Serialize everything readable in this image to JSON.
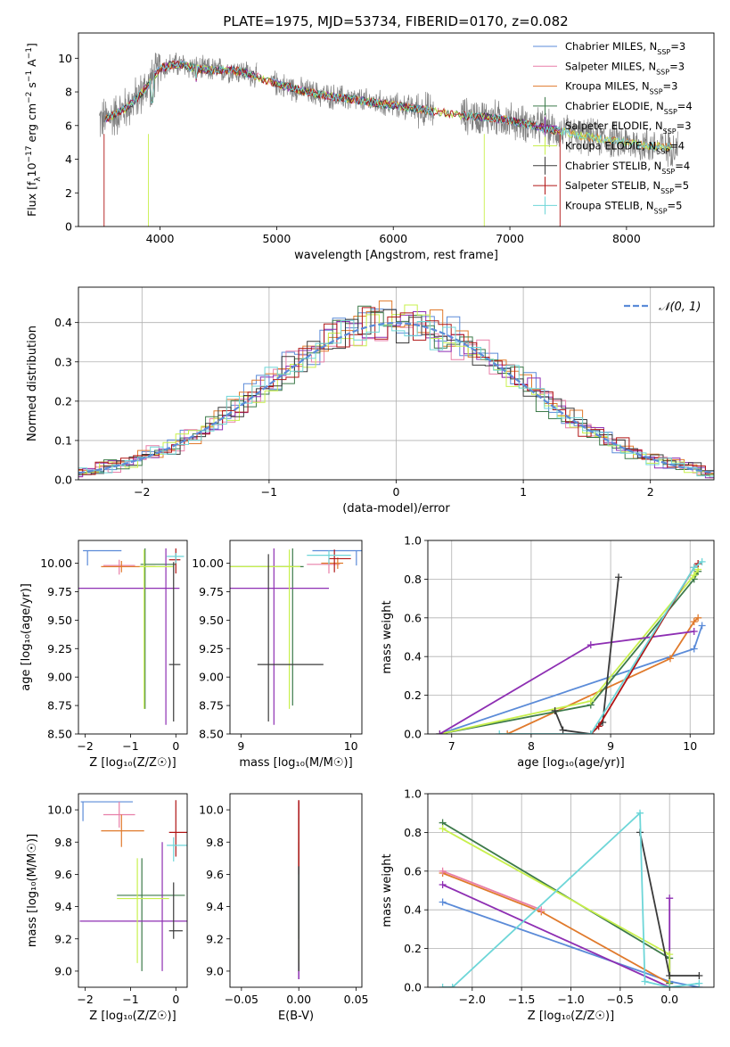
{
  "colors": {
    "Chabrier MILES": "#5b8bd8",
    "Salpeter MILES": "#e87fa8",
    "Kroupa MILES": "#e07a2c",
    "Chabrier ELODIE": "#3d7a4a",
    "Salpeter ELODIE": "#8e2fb3",
    "Kroupa ELODIE": "#c8f04d",
    "Chabrier STELIB": "#3a3a3a",
    "Salpeter STELIB": "#b01515",
    "Kroupa STELIB": "#6ed6d8"
  },
  "chart_data": [
    {
      "id": "spectrum",
      "type": "line",
      "title": "PLATE=1975, MJD=53734, FIBERID=0170, z=0.082",
      "xlabel": "wavelength [Angstrom, rest frame]",
      "ylabel_parts": [
        "Flux [f",
        "λ",
        "10",
        "−17",
        " erg cm",
        "−2",
        " s",
        "−1",
        " A",
        "−1",
        "]"
      ],
      "xlim": [
        3300,
        8750
      ],
      "ylim": [
        0,
        11.5
      ],
      "xticks": [
        "4000",
        "5000",
        "6000",
        "7000",
        "8000"
      ],
      "xtick_values": [
        4000,
        5000,
        6000,
        7000,
        8000
      ],
      "yticks": [
        "0",
        "2",
        "4",
        "6",
        "8",
        "10"
      ],
      "ytick_values": [
        0,
        2,
        4,
        6,
        8,
        10
      ],
      "data_color": "#808080",
      "legend": [
        {
          "name": "Chabrier MILES",
          "suffix": "=3"
        },
        {
          "name": "Salpeter MILES",
          "suffix": "=3"
        },
        {
          "name": "Kroupa MILES",
          "suffix": "=3"
        },
        {
          "name": "Chabrier ELODIE",
          "suffix": "=4"
        },
        {
          "name": "Salpeter ELODIE",
          "suffix": "=3"
        },
        {
          "name": "Kroupa ELODIE",
          "suffix": "=4"
        },
        {
          "name": "Chabrier STELIB",
          "suffix": "=4"
        },
        {
          "name": "Salpeter STELIB",
          "suffix": "=5"
        },
        {
          "name": "Kroupa STELIB",
          "suffix": "=5"
        }
      ],
      "legend_label_n": "N",
      "legend_label_sub": "SSP",
      "continuum": {
        "x": [
          3500,
          3600,
          3700,
          3800,
          3900,
          4000,
          4100,
          4200,
          4300,
          4400,
          4500,
          4600,
          4700,
          4800,
          4900,
          5000,
          5200,
          5400,
          5600,
          5800,
          6000,
          6200,
          6400,
          6600,
          6800,
          7000,
          7200,
          7400,
          7600,
          7800,
          8000,
          8200,
          8400
        ],
        "y": [
          6.3,
          6.6,
          7.0,
          7.6,
          8.4,
          9.4,
          9.6,
          9.6,
          9.4,
          9.3,
          9.3,
          9.3,
          9.2,
          9.0,
          8.7,
          8.5,
          8.1,
          7.8,
          7.6,
          7.4,
          7.2,
          7.0,
          6.8,
          6.6,
          6.5,
          6.3,
          6.0,
          5.7,
          5.4,
          5.2,
          5.0,
          4.8,
          4.7
        ]
      }
    },
    {
      "id": "residuals",
      "type": "histogram",
      "xlabel": "(data-model)/error",
      "ylabel": "Normed distribution",
      "xlim": [
        -2.5,
        2.5
      ],
      "ylim": [
        0,
        0.49
      ],
      "xticks": [
        "−2",
        "−1",
        "0",
        "1",
        "2"
      ],
      "xtick_values": [
        -2,
        -1,
        0,
        1,
        2
      ],
      "yticks": [
        "0.0",
        "0.1",
        "0.2",
        "0.3",
        "0.4"
      ],
      "ytick_values": [
        0,
        0.1,
        0.2,
        0.3,
        0.4
      ],
      "grid": true,
      "legend": "top-right",
      "gaussian_label": "𝒩(0, 1)",
      "gaussian_color": "#5b8bd8",
      "bin_width": 0.1,
      "series_order": [
        "Chabrier MILES",
        "Salpeter MILES",
        "Kroupa MILES",
        "Chabrier ELODIE",
        "Salpeter ELODIE",
        "Kroupa ELODIE",
        "Chabrier STELIB",
        "Salpeter STELIB",
        "Kroupa STELIB"
      ]
    },
    {
      "id": "age-vs-z",
      "type": "scatter",
      "xlabel": "Z [log₁₀(Z/Z☉)]",
      "ylabel": "age  [log₁₀(age/yr)]",
      "xlim": [
        -2.15,
        0.25
      ],
      "ylim": [
        8.5,
        10.2
      ],
      "xticks": [
        "−2",
        "−1",
        "0"
      ],
      "xtick_values": [
        -2,
        -1,
        0
      ],
      "yticks": [
        "8.50",
        "8.75",
        "9.00",
        "9.25",
        "9.50",
        "9.75",
        "10.00"
      ],
      "ytick_values": [
        8.5,
        8.75,
        9.0,
        9.25,
        9.5,
        9.75,
        10.0
      ],
      "points": [
        {
          "s": "Chabrier MILES",
          "x": -1.95,
          "xerr": [
            0.1,
            0.75
          ],
          "y": 10.11,
          "yerr": [
            0.13,
            0
          ]
        },
        {
          "s": "Salpeter MILES",
          "x": -1.25,
          "xerr": [
            0.35,
            0.35
          ],
          "y": 9.98,
          "yerr": [
            0.08,
            0.05
          ]
        },
        {
          "s": "Kroupa MILES",
          "x": -1.2,
          "xerr": [
            0.45,
            0.75
          ],
          "y": 9.97,
          "yerr": [
            0.05,
            0.05
          ]
        },
        {
          "s": "Chabrier ELODIE",
          "x": -0.68,
          "xerr": [
            0.1,
            0.68
          ],
          "y": 9.99,
          "yerr": [
            1.27,
            0.14
          ]
        },
        {
          "s": "Salpeter ELODIE",
          "x": -0.22,
          "xerr": [
            1.93,
            0.3
          ],
          "y": 9.78,
          "yerr": [
            1.2,
            0.35
          ]
        },
        {
          "s": "Kroupa ELODIE",
          "x": -0.7,
          "xerr": [
            0.1,
            0.65
          ],
          "y": 9.97,
          "yerr": [
            1.25,
            0.15
          ]
        },
        {
          "s": "Chabrier STELIB",
          "x": -0.05,
          "xerr": [
            0.1,
            0.15
          ],
          "y": 9.11,
          "yerr": [
            0.5,
            0.9
          ]
        },
        {
          "s": "Salpeter STELIB",
          "x": 0.0,
          "xerr": [
            0.15,
            0.1
          ],
          "y": 10.03,
          "yerr": [
            0.12,
            0.1
          ]
        },
        {
          "s": "Kroupa STELIB",
          "x": 0.0,
          "xerr": [
            0.2,
            0.18
          ],
          "y": 10.06,
          "yerr": [
            0.06,
            0.03
          ]
        }
      ]
    },
    {
      "id": "age-vs-mass",
      "type": "scatter",
      "xlabel": "mass [log₁₀(M/M☉)]",
      "xlim": [
        8.9,
        10.1
      ],
      "ylim": [
        8.5,
        10.2
      ],
      "xticks": [
        "9",
        "10"
      ],
      "xtick_values": [
        9,
        10
      ],
      "yticks": [
        "8.50",
        "8.75",
        "9.00",
        "9.25",
        "9.50",
        "9.75",
        "10.00"
      ],
      "ytick_values": [
        8.5,
        8.75,
        9.0,
        9.25,
        9.5,
        9.75,
        10.0
      ],
      "points": [
        {
          "s": "Chabrier MILES",
          "x": 10.05,
          "xerr": [
            0.4,
            0.05
          ],
          "y": 10.11,
          "yerr": [
            0.13,
            0
          ]
        },
        {
          "s": "Salpeter MILES",
          "x": 9.8,
          "xerr": [
            0.2,
            0.1
          ],
          "y": 9.99,
          "yerr": [
            0.08,
            0.05
          ]
        },
        {
          "s": "Kroupa MILES",
          "x": 9.88,
          "xerr": [
            0.15,
            0.05
          ],
          "y": 10.0,
          "yerr": [
            0.05,
            0.05
          ]
        },
        {
          "s": "Chabrier ELODIE",
          "x": 9.47,
          "xerr": [
            0.6,
            0.1
          ],
          "y": 9.97,
          "yerr": [
            1.22,
            0.16
          ]
        },
        {
          "s": "Salpeter ELODIE",
          "x": 9.3,
          "xerr": [
            0.5,
            0.5
          ],
          "y": 9.78,
          "yerr": [
            1.2,
            0.35
          ]
        },
        {
          "s": "Kroupa ELODIE",
          "x": 9.44,
          "xerr": [
            0.6,
            0.1
          ],
          "y": 9.97,
          "yerr": [
            1.25,
            0.15
          ]
        },
        {
          "s": "Chabrier STELIB",
          "x": 9.25,
          "xerr": [
            0.1,
            0.5
          ],
          "y": 9.11,
          "yerr": [
            0.5,
            0.97
          ]
        },
        {
          "s": "Salpeter STELIB",
          "x": 9.85,
          "xerr": [
            0.05,
            0.15
          ],
          "y": 10.04,
          "yerr": [
            0.12,
            0.08
          ]
        },
        {
          "s": "Kroupa STELIB",
          "x": 9.8,
          "xerr": [
            0.2,
            0.2
          ],
          "y": 10.07,
          "yerr": [
            0.08,
            0.04
          ]
        }
      ]
    },
    {
      "id": "weight-vs-age",
      "type": "line",
      "xlabel": "age  [log₁₀(age/yr)]",
      "ylabel": "mass weight",
      "xlim": [
        6.7,
        10.3
      ],
      "ylim": [
        0,
        1.0
      ],
      "xticks": [
        "7",
        "8",
        "9",
        "10"
      ],
      "xtick_values": [
        7,
        8,
        9,
        10
      ],
      "yticks": [
        "0.0",
        "0.2",
        "0.4",
        "0.6",
        "0.8",
        "1.0"
      ],
      "ytick_values": [
        0,
        0.2,
        0.4,
        0.6,
        0.8,
        1.0
      ],
      "grid": true,
      "series": [
        {
          "name": "Chabrier MILES",
          "x": [
            6.85,
            10.05,
            10.15
          ],
          "y": [
            0.0,
            0.44,
            0.56
          ]
        },
        {
          "name": "Kroupa MILES",
          "x": [
            7.7,
            9.75,
            10.05,
            10.1
          ],
          "y": [
            0.0,
            0.39,
            0.58,
            0.6
          ]
        },
        {
          "name": "Chabrier ELODIE",
          "x": [
            6.85,
            8.75,
            10.05,
            10.1
          ],
          "y": [
            0.0,
            0.15,
            0.8,
            0.84
          ]
        },
        {
          "name": "Kroupa ELODIE",
          "x": [
            6.85,
            8.75,
            10.05,
            10.1
          ],
          "y": [
            0.0,
            0.17,
            0.82,
            0.85
          ]
        },
        {
          "name": "Salpeter ELODIE",
          "x": [
            6.85,
            8.75,
            10.05
          ],
          "y": [
            0.0,
            0.46,
            0.53
          ]
        },
        {
          "name": "Chabrier STELIB",
          "x": [
            8.3,
            8.4,
            8.75,
            8.9,
            9.1
          ],
          "y": [
            0.12,
            0.02,
            0.0,
            0.06,
            0.81
          ]
        },
        {
          "name": "Salpeter STELIB",
          "x": [
            8.75,
            8.85,
            10.05,
            10.1
          ],
          "y": [
            0.0,
            0.04,
            0.86,
            0.88
          ]
        },
        {
          "name": "Kroupa STELIB",
          "x": [
            7.6,
            8.75,
            10.05,
            10.15
          ],
          "y": [
            0.0,
            0.0,
            0.86,
            0.89
          ]
        }
      ]
    },
    {
      "id": "mass-vs-z",
      "type": "scatter",
      "xlabel": "Z [log₁₀(Z/Z☉)]",
      "ylabel": "mass [log₁₀(M/M☉)]",
      "xlim": [
        -2.15,
        0.25
      ],
      "ylim": [
        8.9,
        10.1
      ],
      "xticks": [
        "−2",
        "−1",
        "0"
      ],
      "xtick_values": [
        -2,
        -1,
        0
      ],
      "yticks": [
        "9.0",
        "9.2",
        "9.4",
        "9.6",
        "9.8",
        "10.0"
      ],
      "ytick_values": [
        9.0,
        9.2,
        9.4,
        9.6,
        9.8,
        10.0
      ],
      "points": [
        {
          "s": "Chabrier MILES",
          "x": -2.05,
          "xerr": [
            0.05,
            1.1
          ],
          "y": 10.05,
          "yerr": [
            0.12,
            0
          ]
        },
        {
          "s": "Salpeter MILES",
          "x": -1.25,
          "xerr": [
            0.35,
            0.35
          ],
          "y": 9.97,
          "yerr": [
            0.08,
            0.08
          ]
        },
        {
          "s": "Kroupa MILES",
          "x": -1.2,
          "xerr": [
            0.45,
            0.5
          ],
          "y": 9.87,
          "yerr": [
            0.1,
            0.1
          ]
        },
        {
          "s": "Chabrier ELODIE",
          "x": -0.75,
          "xerr": [
            0.55,
            0.95
          ],
          "y": 9.47,
          "yerr": [
            0.47,
            0.23
          ]
        },
        {
          "s": "Salpeter ELODIE",
          "x": -0.3,
          "xerr": [
            1.82,
            0.85
          ],
          "y": 9.31,
          "yerr": [
            0.31,
            0.49
          ]
        },
        {
          "s": "Kroupa ELODIE",
          "x": -0.85,
          "xerr": [
            0.45,
            0.7
          ],
          "y": 9.45,
          "yerr": [
            0.4,
            0.25
          ]
        },
        {
          "s": "Chabrier STELIB",
          "x": -0.05,
          "xerr": [
            0.1,
            0.2
          ],
          "y": 9.25,
          "yerr": [
            0.05,
            0.3
          ]
        },
        {
          "s": "Salpeter STELIB",
          "x": 0.0,
          "xerr": [
            0.15,
            0.3
          ],
          "y": 9.86,
          "yerr": [
            0.15,
            0.2
          ]
        },
        {
          "s": "Kroupa STELIB",
          "x": -0.05,
          "xerr": [
            0.15,
            0.35
          ],
          "y": 9.78,
          "yerr": [
            0.1,
            0.05
          ]
        }
      ]
    },
    {
      "id": "mass-vs-ebv",
      "type": "scatter",
      "xlabel": "E(B-V)",
      "xlim": [
        -0.06,
        0.055
      ],
      "ylim": [
        8.9,
        10.1
      ],
      "xticks": [
        "−0.05",
        "0.00",
        "0.05"
      ],
      "xtick_values": [
        -0.05,
        0,
        0.05
      ],
      "yticks": [
        "9.0",
        "9.2",
        "9.4",
        "9.6",
        "9.8",
        "10.0"
      ],
      "ytick_values": [
        9.0,
        9.2,
        9.4,
        9.6,
        9.8,
        10.0
      ],
      "segments": [
        {
          "s": "Salpeter ELODIE",
          "y1": 8.95,
          "y2": 10.05
        },
        {
          "s": "Kroupa ELODIE",
          "y1": 9.05,
          "y2": 9.95
        },
        {
          "s": "Chabrier ELODIE",
          "y1": 9.2,
          "y2": 9.8
        },
        {
          "s": "Kroupa STELIB",
          "y1": 9.35,
          "y2": 9.98
        },
        {
          "s": "Salpeter STELIB",
          "y1": 9.6,
          "y2": 10.06
        },
        {
          "s": "Chabrier STELIB",
          "y1": 9.0,
          "y2": 9.65
        }
      ]
    },
    {
      "id": "weight-vs-z",
      "type": "line",
      "xlabel": "Z [log₁₀(Z/Z☉)]",
      "ylabel": "mass weight",
      "xlim": [
        -2.45,
        0.45
      ],
      "ylim": [
        0,
        1.0
      ],
      "xticks": [
        "−2.0",
        "−1.5",
        "−1.0",
        "−0.5",
        "0.0"
      ],
      "xtick_values": [
        -2.0,
        -1.5,
        -1.0,
        -0.5,
        0.0
      ],
      "yticks": [
        "0.0",
        "0.2",
        "0.4",
        "0.6",
        "0.8",
        "1.0"
      ],
      "ytick_values": [
        0,
        0.2,
        0.4,
        0.6,
        0.8,
        1.0
      ],
      "grid": true,
      "series": [
        {
          "name": "Chabrier MILES",
          "x": [
            -2.3,
            0.0,
            0.3
          ],
          "y": [
            0.44,
            0.03,
            0.0
          ]
        },
        {
          "name": "Kroupa MILES",
          "x": [
            -2.3,
            -1.3,
            0.0
          ],
          "y": [
            0.59,
            0.39,
            0.02
          ]
        },
        {
          "name": "Salpeter MILES",
          "x": [
            -2.3,
            -1.3
          ],
          "y": [
            0.6,
            0.4
          ]
        },
        {
          "name": "Salpeter ELODIE",
          "x": [
            -2.3,
            0.0,
            0.0
          ],
          "y": [
            0.53,
            0.0,
            0.46
          ]
        },
        {
          "name": "Chabrier ELODIE",
          "x": [
            -2.3,
            0.0,
            0.0
          ],
          "y": [
            0.85,
            0.15,
            0.02
          ]
        },
        {
          "name": "Kroupa ELODIE",
          "x": [
            -2.3,
            0.0,
            0.0
          ],
          "y": [
            0.82,
            0.17,
            0.0
          ]
        },
        {
          "name": "Chabrier STELIB",
          "x": [
            -0.3,
            0.0,
            0.3
          ],
          "y": [
            0.8,
            0.06,
            0.06
          ]
        },
        {
          "name": "Kroupa STELIB",
          "x": [
            -2.3,
            -2.2,
            -0.3,
            -0.25,
            0.0,
            0.3
          ],
          "y": [
            0.0,
            0.0,
            0.9,
            0.03,
            0.0,
            0.02
          ]
        }
      ]
    }
  ]
}
